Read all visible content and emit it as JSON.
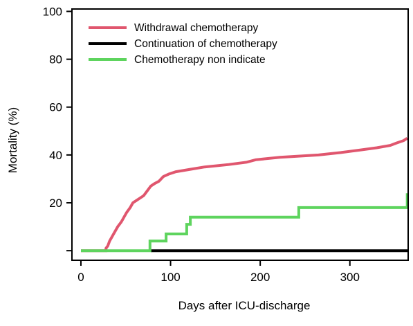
{
  "chart_data": {
    "type": "line",
    "step": true,
    "title": "",
    "xlabel": "Days after ICU-discharge",
    "ylabel": "Mortality (%)",
    "xlim": [
      -10,
      365
    ],
    "ylim": [
      -4,
      101
    ],
    "xticks": [
      0,
      100,
      200,
      300
    ],
    "yticks": [
      0,
      20,
      40,
      60,
      80,
      100
    ],
    "ytick_labels": [
      "",
      "20",
      "40",
      "60",
      "80",
      "100"
    ],
    "grid": false,
    "legend_position": "top-left",
    "series": [
      {
        "name": "Withdrawal chemotherapy",
        "color": "#e0566e",
        "points": [
          [
            0,
            0
          ],
          [
            28,
            0
          ],
          [
            28,
            1
          ],
          [
            30,
            2
          ],
          [
            32,
            4
          ],
          [
            35,
            6
          ],
          [
            38,
            8
          ],
          [
            41,
            10
          ],
          [
            45,
            12
          ],
          [
            48,
            14
          ],
          [
            51,
            16
          ],
          [
            55,
            18
          ],
          [
            58,
            20
          ],
          [
            62,
            21
          ],
          [
            66,
            22
          ],
          [
            70,
            23
          ],
          [
            74,
            25
          ],
          [
            78,
            27
          ],
          [
            82,
            28
          ],
          [
            87,
            29
          ],
          [
            92,
            31
          ],
          [
            98,
            32
          ],
          [
            106,
            33
          ],
          [
            122,
            34
          ],
          [
            138,
            35
          ],
          [
            165,
            36
          ],
          [
            185,
            37
          ],
          [
            195,
            38
          ],
          [
            222,
            39
          ],
          [
            265,
            40
          ],
          [
            290,
            41
          ],
          [
            310,
            42
          ],
          [
            330,
            43
          ],
          [
            345,
            44
          ],
          [
            352,
            45
          ],
          [
            360,
            46
          ],
          [
            364,
            47
          ]
        ]
      },
      {
        "name": "Continuation of chemotherapy",
        "color": "#000000",
        "points": [
          [
            78,
            0
          ],
          [
            365,
            0
          ]
        ]
      },
      {
        "name": "Chemotherapy non indicate",
        "color": "#5ed45e",
        "points": [
          [
            0,
            0
          ],
          [
            77,
            0
          ],
          [
            77,
            4
          ],
          [
            95,
            4
          ],
          [
            95,
            7
          ],
          [
            118,
            7
          ],
          [
            118,
            11
          ],
          [
            122,
            11
          ],
          [
            122,
            14
          ],
          [
            243,
            14
          ],
          [
            243,
            18
          ],
          [
            364,
            18
          ],
          [
            364,
            24
          ]
        ]
      }
    ]
  }
}
